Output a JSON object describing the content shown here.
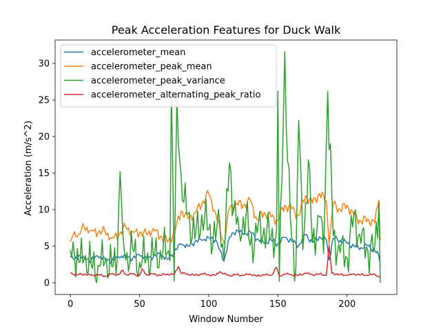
{
  "chart_data": {
    "type": "line",
    "title": "Peak Acceleration Features for Duck Walk",
    "xlabel": "Window Number",
    "ylabel": "Acceleration (m/s^2)",
    "xlim": [
      -11,
      236
    ],
    "ylim": [
      -1.6,
      33.2
    ],
    "xticks": [
      0,
      50,
      100,
      150,
      200
    ],
    "yticks": [
      0,
      5,
      10,
      15,
      20,
      25,
      30
    ],
    "legend_position": "top-left",
    "grid": false,
    "series": [
      {
        "name": "accelerometer_mean",
        "color": "#1f77b4",
        "keypoints": [
          [
            0,
            3.5
          ],
          [
            3,
            3.2
          ],
          [
            6,
            3.7
          ],
          [
            10,
            3.4
          ],
          [
            15,
            3.1
          ],
          [
            20,
            3.6
          ],
          [
            25,
            3.3
          ],
          [
            30,
            3.0
          ],
          [
            35,
            3.5
          ],
          [
            40,
            3.7
          ],
          [
            45,
            3.3
          ],
          [
            50,
            3.8
          ],
          [
            55,
            3.4
          ],
          [
            60,
            3.6
          ],
          [
            65,
            3.9
          ],
          [
            70,
            3.2
          ],
          [
            75,
            4.2
          ],
          [
            80,
            5.3
          ],
          [
            85,
            5.0
          ],
          [
            90,
            5.6
          ],
          [
            95,
            5.8
          ],
          [
            100,
            6.2
          ],
          [
            105,
            5.9
          ],
          [
            108,
            4.5
          ],
          [
            111,
            3.0
          ],
          [
            115,
            6.2
          ],
          [
            120,
            7.2
          ],
          [
            125,
            6.6
          ],
          [
            130,
            7.0
          ],
          [
            135,
            6.0
          ],
          [
            140,
            5.4
          ],
          [
            145,
            5.9
          ],
          [
            150,
            5.3
          ],
          [
            155,
            6.2
          ],
          [
            160,
            5.7
          ],
          [
            165,
            5.1
          ],
          [
            170,
            6.6
          ],
          [
            175,
            5.5
          ],
          [
            180,
            6.3
          ],
          [
            185,
            5.9
          ],
          [
            187,
            3.1
          ],
          [
            190,
            6.1
          ],
          [
            195,
            5.8
          ],
          [
            200,
            5.4
          ],
          [
            205,
            5.0
          ],
          [
            210,
            4.8
          ],
          [
            215,
            5.1
          ],
          [
            220,
            4.4
          ],
          [
            223,
            3.6
          ],
          [
            224,
            2.4
          ]
        ],
        "amp": 0.45
      },
      {
        "name": "accelerometer_peak_mean",
        "color": "#ff7f0e",
        "keypoints": [
          [
            0,
            5.6
          ],
          [
            3,
            7.0
          ],
          [
            6,
            6.6
          ],
          [
            10,
            7.6
          ],
          [
            15,
            7.2
          ],
          [
            20,
            6.8
          ],
          [
            25,
            7.0
          ],
          [
            30,
            6.1
          ],
          [
            35,
            6.5
          ],
          [
            40,
            7.6
          ],
          [
            45,
            7.0
          ],
          [
            50,
            6.8
          ],
          [
            55,
            6.6
          ],
          [
            60,
            7.4
          ],
          [
            65,
            6.3
          ],
          [
            70,
            5.6
          ],
          [
            75,
            6.8
          ],
          [
            80,
            9.8
          ],
          [
            85,
            8.8
          ],
          [
            90,
            9.6
          ],
          [
            95,
            10.8
          ],
          [
            100,
            12.2
          ],
          [
            105,
            9.5
          ],
          [
            108,
            7.5
          ],
          [
            111,
            5.4
          ],
          [
            115,
            10.2
          ],
          [
            120,
            10.9
          ],
          [
            125,
            10.6
          ],
          [
            130,
            11.2
          ],
          [
            135,
            8.6
          ],
          [
            140,
            9.6
          ],
          [
            145,
            9.0
          ],
          [
            150,
            8.6
          ],
          [
            155,
            10.6
          ],
          [
            160,
            10.1
          ],
          [
            165,
            9.2
          ],
          [
            170,
            11.9
          ],
          [
            175,
            10.9
          ],
          [
            180,
            12.2
          ],
          [
            185,
            11.2
          ],
          [
            187,
            5.2
          ],
          [
            190,
            10.8
          ],
          [
            195,
            10.0
          ],
          [
            200,
            10.6
          ],
          [
            205,
            9.2
          ],
          [
            210,
            8.4
          ],
          [
            215,
            8.7
          ],
          [
            220,
            8.2
          ],
          [
            223,
            11.3
          ],
          [
            224,
            5.8
          ]
        ],
        "amp": 0.8
      },
      {
        "name": "accelerometer_peak_variance",
        "color": "#2ca02c",
        "keypoints": [
          [
            0,
            4.5
          ],
          [
            3,
            3.8
          ],
          [
            6,
            2.8
          ],
          [
            10,
            3.2
          ],
          [
            15,
            2.5
          ],
          [
            20,
            2.4
          ],
          [
            25,
            2.8
          ],
          [
            30,
            2.2
          ],
          [
            34,
            3.5
          ],
          [
            36,
            15.2
          ],
          [
            38,
            6.5
          ],
          [
            40,
            3.1
          ],
          [
            45,
            4.6
          ],
          [
            50,
            2.8
          ],
          [
            55,
            3.2
          ],
          [
            60,
            3.6
          ],
          [
            65,
            4.4
          ],
          [
            70,
            4.1
          ],
          [
            72,
            3.0
          ],
          [
            73,
            26.4
          ],
          [
            75,
            0.2
          ],
          [
            77,
            25.6
          ],
          [
            79,
            16.8
          ],
          [
            81,
            11.2
          ],
          [
            85,
            9.4
          ],
          [
            90,
            6.0
          ],
          [
            95,
            9.3
          ],
          [
            100,
            7.3
          ],
          [
            105,
            6.0
          ],
          [
            108,
            8.2
          ],
          [
            111,
            2.9
          ],
          [
            115,
            16.4
          ],
          [
            118,
            10.0
          ],
          [
            122,
            7.2
          ],
          [
            127,
            9.3
          ],
          [
            130,
            5.1
          ],
          [
            135,
            6.8
          ],
          [
            140,
            7.5
          ],
          [
            145,
            6.1
          ],
          [
            149,
            7.0
          ],
          [
            150,
            26.2
          ],
          [
            151,
            0.2
          ],
          [
            155,
            31.6
          ],
          [
            157,
            16.6
          ],
          [
            160,
            6.0
          ],
          [
            163,
            2.0
          ],
          [
            165,
            22.2
          ],
          [
            168,
            4.5
          ],
          [
            172,
            16.8
          ],
          [
            175,
            5.5
          ],
          [
            180,
            9.0
          ],
          [
            183,
            4.0
          ],
          [
            186,
            26.2
          ],
          [
            187,
            18.2
          ],
          [
            188,
            19.0
          ],
          [
            190,
            6.4
          ],
          [
            195,
            4.1
          ],
          [
            200,
            3.4
          ],
          [
            205,
            9.5
          ],
          [
            210,
            5.4
          ],
          [
            215,
            4.4
          ],
          [
            220,
            5.0
          ],
          [
            223,
            11.0
          ],
          [
            224,
            0.0
          ]
        ],
        "amp": 3.4
      },
      {
        "name": "accelerometer_alternating_peak_ratio",
        "color": "#d62728",
        "keypoints": [
          [
            0,
            1.3
          ],
          [
            5,
            1.1
          ],
          [
            10,
            1.2
          ],
          [
            15,
            1.0
          ],
          [
            20,
            1.1
          ],
          [
            25,
            0.9
          ],
          [
            30,
            1.2
          ],
          [
            35,
            1.1
          ],
          [
            38,
            1.7
          ],
          [
            40,
            1.1
          ],
          [
            45,
            1.2
          ],
          [
            50,
            1.0
          ],
          [
            52,
            1.9
          ],
          [
            55,
            1.1
          ],
          [
            60,
            1.2
          ],
          [
            65,
            1.0
          ],
          [
            70,
            1.2
          ],
          [
            75,
            1.1
          ],
          [
            78,
            2.2
          ],
          [
            80,
            1.3
          ],
          [
            85,
            1.2
          ],
          [
            90,
            1.0
          ],
          [
            95,
            1.2
          ],
          [
            100,
            1.1
          ],
          [
            105,
            1.0
          ],
          [
            108,
            1.5
          ],
          [
            111,
            1.2
          ],
          [
            115,
            1.0
          ],
          [
            120,
            1.1
          ],
          [
            125,
            1.0
          ],
          [
            130,
            1.2
          ],
          [
            135,
            0.9
          ],
          [
            140,
            1.1
          ],
          [
            145,
            1.0
          ],
          [
            149,
            2.1
          ],
          [
            151,
            0.9
          ],
          [
            155,
            1.2
          ],
          [
            160,
            1.1
          ],
          [
            165,
            1.0
          ],
          [
            170,
            1.3
          ],
          [
            175,
            1.1
          ],
          [
            180,
            1.2
          ],
          [
            185,
            1.0
          ],
          [
            187,
            5.1
          ],
          [
            189,
            1.3
          ],
          [
            195,
            1.1
          ],
          [
            200,
            1.0
          ],
          [
            205,
            1.2
          ],
          [
            210,
            1.1
          ],
          [
            215,
            1.0
          ],
          [
            220,
            1.2
          ],
          [
            224,
            0.7
          ]
        ],
        "amp": 0.18
      }
    ]
  }
}
